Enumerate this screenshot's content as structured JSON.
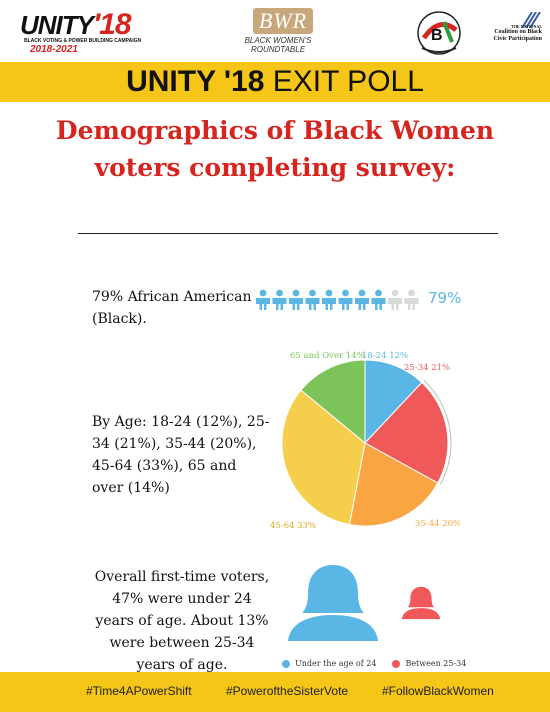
{
  "logos": {
    "unity": {
      "word": "UNITY",
      "year": "'18",
      "tagline": "BLACK VOTING & POWER BUILDING CAMPAIGN",
      "years": "2018-2021"
    },
    "bwr": {
      "mark": "BWR",
      "name": "BLACK WOMEN'S ROUNDTABLE"
    },
    "ncbcp": {
      "line1": "THE NATIONAL",
      "line2": "Coalition on Black",
      "line3": "Civic Participation"
    }
  },
  "banner": {
    "bold": "UNITY '18",
    "rest": " EXIT POLL"
  },
  "heading": "Demographics of Black Women voters completing survey:",
  "sections": {
    "african_american": {
      "text": "79% African American (Black).",
      "pct_label": "79%",
      "filled": 8,
      "total": 10
    },
    "age": {
      "text": "By Age: 18-24 (12%), 25-34 (21%), 35-44 (20%), 45-64 (33%), 65 and over (14%)"
    },
    "first_time": {
      "text": "Overall first-time voters, 47% were under 24 years of age. About 13% were between 25-34 years of age."
    }
  },
  "chart_data": {
    "type": "pie",
    "slices": [
      {
        "label": "18-24 12%",
        "value": 12,
        "color": "#5ab6e4"
      },
      {
        "label": "25-34 21%",
        "value": 21,
        "color": "#f0595a"
      },
      {
        "label": "35-44 20%",
        "value": 20,
        "color": "#f9a541"
      },
      {
        "label": "45-64 33%",
        "value": 33,
        "color": "#f5cf4c"
      },
      {
        "label": "65 and Over 14%",
        "value": 14,
        "color": "#7cc35a"
      }
    ]
  },
  "legend": {
    "items": [
      {
        "label": "Under the age of 24",
        "color": "#5ab6e4"
      },
      {
        "label": "Between 25-34",
        "color": "#f0595a"
      }
    ]
  },
  "footer": {
    "tags": [
      "#Time4APowerShift",
      "#PoweroftheSisterVote",
      "#FollowBlackWomen"
    ]
  },
  "colors": {
    "accent_yellow": "#f5c518",
    "heading_red": "#d6251f",
    "person_blue": "#5ab6e4",
    "person_red": "#f0595a",
    "person_grey": "#d9d9d9"
  },
  "icons": [
    "person-icon",
    "large-woman-icon",
    "small-woman-icon"
  ]
}
